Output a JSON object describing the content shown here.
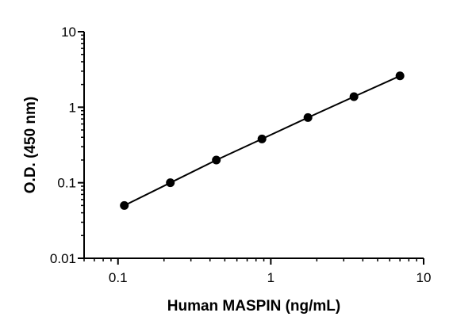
{
  "chart_data": {
    "type": "line",
    "title": "",
    "xlabel": "Human MASPIN (ng/mL)",
    "ylabel": "O.D. (450 nm)",
    "xscale": "log",
    "yscale": "log",
    "xlim": [
      0.06,
      10
    ],
    "ylim": [
      0.01,
      10
    ],
    "x_ticks": [
      {
        "value": 0.1,
        "label": "0.1"
      },
      {
        "value": 1,
        "label": "1"
      },
      {
        "value": 10,
        "label": "10"
      }
    ],
    "y_ticks": [
      {
        "value": 0.01,
        "label": "0.01"
      },
      {
        "value": 0.1,
        "label": "0.1"
      },
      {
        "value": 1,
        "label": "1"
      },
      {
        "value": 10,
        "label": "10"
      }
    ],
    "series": [
      {
        "points": [
          {
            "x": 0.11,
            "y": 0.05
          },
          {
            "x": 0.22,
            "y": 0.1
          },
          {
            "x": 0.44,
            "y": 0.2
          },
          {
            "x": 0.875,
            "y": 0.38
          },
          {
            "x": 1.75,
            "y": 0.73
          },
          {
            "x": 3.5,
            "y": 1.38
          },
          {
            "x": 7.0,
            "y": 2.6
          }
        ],
        "color": "#000000"
      }
    ],
    "grid": false,
    "legend": "none"
  }
}
